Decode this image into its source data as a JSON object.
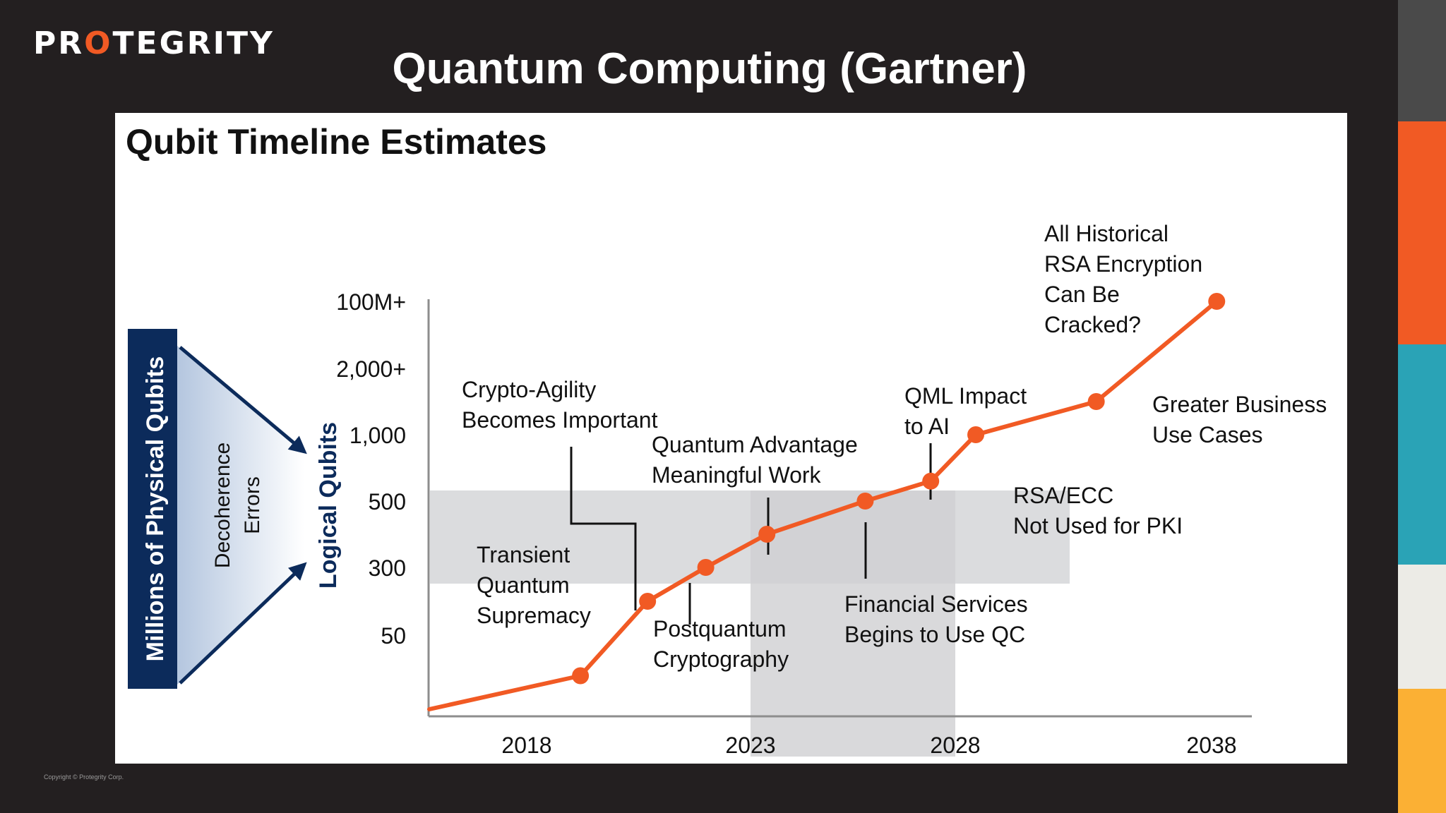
{
  "brand": {
    "logo_left": "PR",
    "logo_o": "O",
    "logo_right": "TEGRITY"
  },
  "slide": {
    "title": "Quantum Computing (Gartner)",
    "copyright": "Copyright © Protegrity Corp."
  },
  "colors": {
    "background": "#231f20",
    "accent": "#f15a24",
    "navy": "#0c2b5b",
    "stripes": [
      "#4a4a4a",
      "#f15a24",
      "#2aa3b6",
      "#ecebe6",
      "#fbb034"
    ]
  },
  "chart_data": {
    "type": "line",
    "title": "Qubit Timeline Estimates",
    "left_label": "Millions of Physical Qubits",
    "middle_label": [
      "Decoherence",
      "Errors"
    ],
    "ylabel": "Logical Qubits",
    "y_ticks": [
      "50",
      "300",
      "500",
      "1,000",
      "2,000+",
      "100M+"
    ],
    "x_ticks": [
      "2018",
      "2023",
      "2028",
      "2038"
    ],
    "series": [
      {
        "points": [
          {
            "x": 2019.2,
            "y": 25
          },
          {
            "x": 2020.7,
            "y": 175
          },
          {
            "x": 2022.0,
            "y": 300
          },
          {
            "x": 2023.4,
            "y": 400
          },
          {
            "x": 2025.8,
            "y": 500
          },
          {
            "x": 2027.4,
            "y": 650
          },
          {
            "x": 2028.8,
            "y": 1000
          },
          {
            "x": 2033.5,
            "y": 1500
          },
          {
            "x": 2038.2,
            "y": 100000000
          }
        ]
      }
    ],
    "annotations": [
      {
        "lines": [
          "Transient",
          "Quantum",
          "Supremacy"
        ]
      },
      {
        "lines": [
          "Crypto-Agility",
          "Becomes Important"
        ]
      },
      {
        "lines": [
          "Postquantum",
          "Cryptography"
        ]
      },
      {
        "lines": [
          "Quantum Advantage",
          "Meaningful Work"
        ]
      },
      {
        "lines": [
          "Financial Services",
          "Begins to Use QC"
        ]
      },
      {
        "lines": [
          "QML Impact",
          "to AI"
        ]
      },
      {
        "lines": [
          "RSA/ECC",
          "Not Used for PKI"
        ]
      },
      {
        "lines": [
          "Greater Business",
          "Use Cases"
        ]
      },
      {
        "lines": [
          "All Historical",
          "RSA Encryption",
          "Can Be",
          "Cracked?"
        ]
      }
    ],
    "shaded_regions": [
      "2018–2028, logical qubits 300–500",
      "2023–2028"
    ],
    "grid": false
  }
}
